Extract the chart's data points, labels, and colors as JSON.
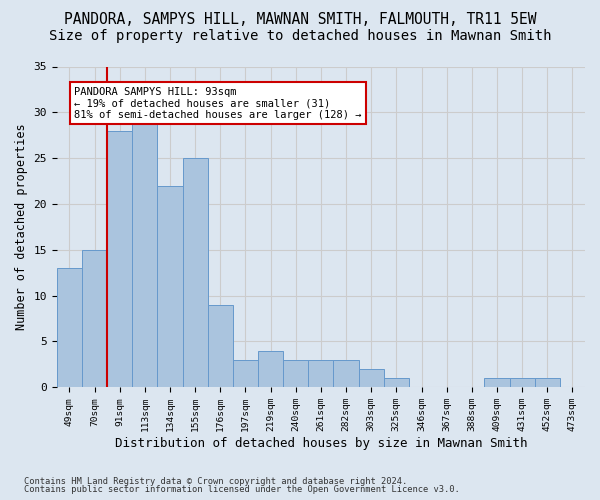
{
  "title": "PANDORA, SAMPYS HILL, MAWNAN SMITH, FALMOUTH, TR11 5EW",
  "subtitle": "Size of property relative to detached houses in Mawnan Smith",
  "xlabel": "Distribution of detached houses by size in Mawnan Smith",
  "ylabel": "Number of detached properties",
  "footnote1": "Contains HM Land Registry data © Crown copyright and database right 2024.",
  "footnote2": "Contains public sector information licensed under the Open Government Licence v3.0.",
  "annotation_title": "PANDORA SAMPYS HILL: 93sqm",
  "annotation_line2": "← 19% of detached houses are smaller (31)",
  "annotation_line3": "81% of semi-detached houses are larger (128) →",
  "bar_values": [
    13,
    15,
    28,
    29,
    22,
    25,
    9,
    3,
    4,
    3,
    3,
    3,
    2,
    1,
    0,
    0,
    0,
    1,
    1,
    1,
    0
  ],
  "categories": [
    "49sqm",
    "70sqm",
    "91sqm",
    "113sqm",
    "134sqm",
    "155sqm",
    "176sqm",
    "197sqm",
    "219sqm",
    "240sqm",
    "261sqm",
    "282sqm",
    "303sqm",
    "325sqm",
    "346sqm",
    "367sqm",
    "388sqm",
    "409sqm",
    "431sqm",
    "452sqm",
    "473sqm"
  ],
  "bar_color": "#aac4de",
  "bar_edge_color": "#6699cc",
  "reference_line_x": 1.5,
  "reference_line_color": "#cc0000",
  "annotation_box_color": "#ffffff",
  "annotation_box_edge_color": "#cc0000",
  "ylim": [
    0,
    35
  ],
  "yticks": [
    0,
    5,
    10,
    15,
    20,
    25,
    30,
    35
  ],
  "grid_color": "#cccccc",
  "bg_color": "#dce6f0",
  "title_fontsize": 10.5,
  "subtitle_fontsize": 10,
  "ylabel_fontsize": 8.5,
  "xlabel_fontsize": 9
}
